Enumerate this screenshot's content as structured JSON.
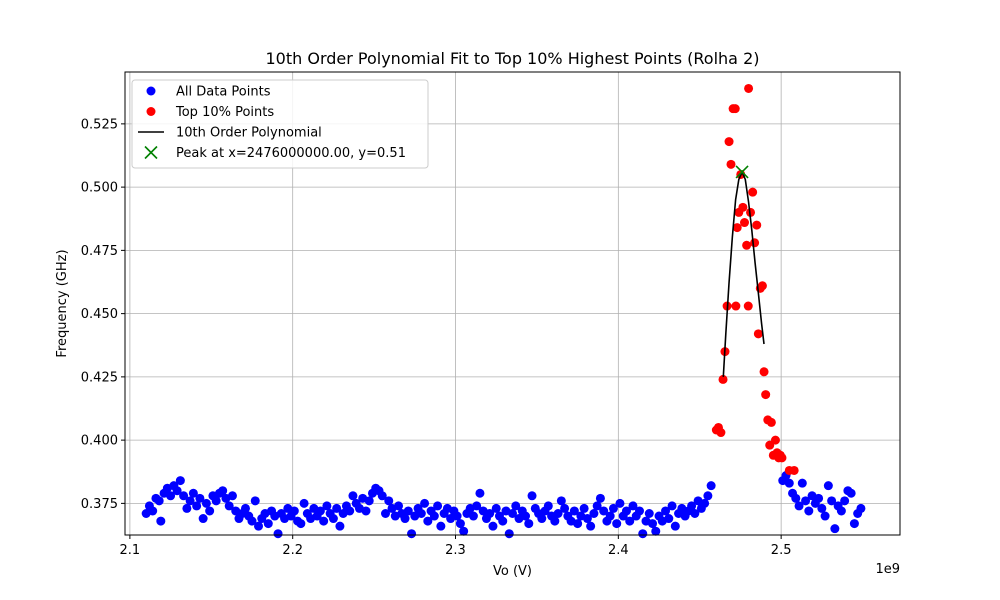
{
  "chart_data": {
    "type": "scatter",
    "title": "10th Order Polynomial Fit to Top 10% Highest Points (Rolha 2)",
    "xlabel": "Vo (V)",
    "ylabel": "Frequency (GHz)",
    "x_offset_label": "1e9",
    "xlim": [
      2.097,
      2.573
    ],
    "ylim": [
      0.3625,
      0.5455
    ],
    "x_ticks": [
      2.1,
      2.2,
      2.3,
      2.4,
      2.5
    ],
    "x_tick_labels": [
      "2.1",
      "2.2",
      "2.3",
      "2.4",
      "2.5"
    ],
    "y_ticks": [
      0.375,
      0.4,
      0.425,
      0.45,
      0.475,
      0.5,
      0.525
    ],
    "y_tick_labels": [
      "0.375",
      "0.400",
      "0.425",
      "0.450",
      "0.475",
      "0.500",
      "0.525"
    ],
    "grid": true,
    "legend_position": "upper-left",
    "colors": {
      "all_points": "#0000ff",
      "top_points": "#ff0000",
      "polynomial": "#000000",
      "peak": "#008000"
    },
    "legend": [
      {
        "label": "All Data Points",
        "marker": "circle",
        "color": "#0000ff"
      },
      {
        "label": "Top 10% Points",
        "marker": "circle",
        "color": "#ff0000"
      },
      {
        "label": "10th Order Polynomial",
        "marker": "line",
        "color": "#000000"
      },
      {
        "label": "Peak at x=2476000000.00, y=0.51",
        "marker": "x",
        "color": "#008000"
      }
    ],
    "series": [
      {
        "name": "All Data Points",
        "points": [
          [
            2.11,
            0.371
          ],
          [
            2.112,
            0.374
          ],
          [
            2.114,
            0.372
          ],
          [
            2.116,
            0.377
          ],
          [
            2.118,
            0.376
          ],
          [
            2.119,
            0.368
          ],
          [
            2.121,
            0.379
          ],
          [
            2.123,
            0.381
          ],
          [
            2.125,
            0.378
          ],
          [
            2.127,
            0.382
          ],
          [
            2.129,
            0.38
          ],
          [
            2.131,
            0.384
          ],
          [
            2.133,
            0.378
          ],
          [
            2.135,
            0.373
          ],
          [
            2.137,
            0.376
          ],
          [
            2.139,
            0.379
          ],
          [
            2.141,
            0.374
          ],
          [
            2.143,
            0.377
          ],
          [
            2.145,
            0.369
          ],
          [
            2.147,
            0.375
          ],
          [
            2.149,
            0.372
          ],
          [
            2.151,
            0.378
          ],
          [
            2.153,
            0.376
          ],
          [
            2.155,
            0.379
          ],
          [
            2.157,
            0.38
          ],
          [
            2.159,
            0.377
          ],
          [
            2.161,
            0.374
          ],
          [
            2.163,
            0.378
          ],
          [
            2.165,
            0.372
          ],
          [
            2.167,
            0.369
          ],
          [
            2.169,
            0.371
          ],
          [
            2.171,
            0.373
          ],
          [
            2.173,
            0.37
          ],
          [
            2.175,
            0.368
          ],
          [
            2.177,
            0.376
          ],
          [
            2.179,
            0.366
          ],
          [
            2.181,
            0.369
          ],
          [
            2.183,
            0.371
          ],
          [
            2.185,
            0.367
          ],
          [
            2.187,
            0.372
          ],
          [
            2.189,
            0.37
          ],
          [
            2.191,
            0.363
          ],
          [
            2.193,
            0.371
          ],
          [
            2.195,
            0.369
          ],
          [
            2.197,
            0.373
          ],
          [
            2.199,
            0.37
          ],
          [
            2.201,
            0.372
          ],
          [
            2.203,
            0.368
          ],
          [
            2.205,
            0.367
          ],
          [
            2.207,
            0.375
          ],
          [
            2.209,
            0.371
          ],
          [
            2.211,
            0.369
          ],
          [
            2.213,
            0.373
          ],
          [
            2.215,
            0.37
          ],
          [
            2.217,
            0.372
          ],
          [
            2.219,
            0.368
          ],
          [
            2.221,
            0.374
          ],
          [
            2.223,
            0.371
          ],
          [
            2.225,
            0.369
          ],
          [
            2.227,
            0.373
          ],
          [
            2.229,
            0.366
          ],
          [
            2.231,
            0.371
          ],
          [
            2.233,
            0.374
          ],
          [
            2.235,
            0.372
          ],
          [
            2.237,
            0.378
          ],
          [
            2.239,
            0.375
          ],
          [
            2.241,
            0.373
          ],
          [
            2.243,
            0.377
          ],
          [
            2.245,
            0.372
          ],
          [
            2.247,
            0.376
          ],
          [
            2.249,
            0.379
          ],
          [
            2.251,
            0.381
          ],
          [
            2.253,
            0.38
          ],
          [
            2.255,
            0.378
          ],
          [
            2.257,
            0.371
          ],
          [
            2.259,
            0.376
          ],
          [
            2.261,
            0.373
          ],
          [
            2.263,
            0.37
          ],
          [
            2.265,
            0.374
          ],
          [
            2.267,
            0.371
          ],
          [
            2.269,
            0.369
          ],
          [
            2.271,
            0.372
          ],
          [
            2.273,
            0.363
          ],
          [
            2.275,
            0.37
          ],
          [
            2.277,
            0.373
          ],
          [
            2.279,
            0.371
          ],
          [
            2.281,
            0.375
          ],
          [
            2.283,
            0.368
          ],
          [
            2.285,
            0.372
          ],
          [
            2.287,
            0.37
          ],
          [
            2.289,
            0.374
          ],
          [
            2.291,
            0.366
          ],
          [
            2.293,
            0.371
          ],
          [
            2.295,
            0.373
          ],
          [
            2.297,
            0.369
          ],
          [
            2.299,
            0.372
          ],
          [
            2.301,
            0.37
          ],
          [
            2.303,
            0.367
          ],
          [
            2.305,
            0.364
          ],
          [
            2.307,
            0.371
          ],
          [
            2.309,
            0.373
          ],
          [
            2.311,
            0.37
          ],
          [
            2.313,
            0.374
          ],
          [
            2.315,
            0.379
          ],
          [
            2.317,
            0.372
          ],
          [
            2.319,
            0.369
          ],
          [
            2.321,
            0.371
          ],
          [
            2.323,
            0.366
          ],
          [
            2.325,
            0.373
          ],
          [
            2.327,
            0.37
          ],
          [
            2.329,
            0.368
          ],
          [
            2.331,
            0.372
          ],
          [
            2.333,
            0.363
          ],
          [
            2.335,
            0.371
          ],
          [
            2.337,
            0.374
          ],
          [
            2.339,
            0.369
          ],
          [
            2.341,
            0.372
          ],
          [
            2.343,
            0.37
          ],
          [
            2.345,
            0.367
          ],
          [
            2.347,
            0.378
          ],
          [
            2.349,
            0.373
          ],
          [
            2.351,
            0.371
          ],
          [
            2.353,
            0.369
          ],
          [
            2.355,
            0.372
          ],
          [
            2.357,
            0.374
          ],
          [
            2.359,
            0.37
          ],
          [
            2.361,
            0.368
          ],
          [
            2.363,
            0.371
          ],
          [
            2.365,
            0.376
          ],
          [
            2.367,
            0.373
          ],
          [
            2.369,
            0.37
          ],
          [
            2.371,
            0.368
          ],
          [
            2.373,
            0.372
          ],
          [
            2.375,
            0.367
          ],
          [
            2.377,
            0.37
          ],
          [
            2.379,
            0.373
          ],
          [
            2.381,
            0.369
          ],
          [
            2.383,
            0.366
          ],
          [
            2.385,
            0.371
          ],
          [
            2.387,
            0.374
          ],
          [
            2.389,
            0.377
          ],
          [
            2.391,
            0.372
          ],
          [
            2.393,
            0.368
          ],
          [
            2.395,
            0.37
          ],
          [
            2.397,
            0.373
          ],
          [
            2.399,
            0.367
          ],
          [
            2.401,
            0.375
          ],
          [
            2.403,
            0.37
          ],
          [
            2.405,
            0.372
          ],
          [
            2.407,
            0.368
          ],
          [
            2.409,
            0.374
          ],
          [
            2.411,
            0.37
          ],
          [
            2.413,
            0.372
          ],
          [
            2.415,
            0.363
          ],
          [
            2.417,
            0.368
          ],
          [
            2.419,
            0.371
          ],
          [
            2.421,
            0.367
          ],
          [
            2.423,
            0.364
          ],
          [
            2.425,
            0.37
          ],
          [
            2.427,
            0.368
          ],
          [
            2.429,
            0.372
          ],
          [
            2.431,
            0.369
          ],
          [
            2.433,
            0.374
          ],
          [
            2.435,
            0.366
          ],
          [
            2.437,
            0.371
          ],
          [
            2.439,
            0.373
          ],
          [
            2.441,
            0.37
          ],
          [
            2.443,
            0.372
          ],
          [
            2.445,
            0.374
          ],
          [
            2.447,
            0.371
          ],
          [
            2.449,
            0.376
          ],
          [
            2.451,
            0.373
          ],
          [
            2.453,
            0.375
          ],
          [
            2.455,
            0.378
          ],
          [
            2.457,
            0.382
          ],
          [
            2.501,
            0.384
          ],
          [
            2.503,
            0.386
          ],
          [
            2.505,
            0.383
          ],
          [
            2.507,
            0.379
          ],
          [
            2.509,
            0.377
          ],
          [
            2.511,
            0.374
          ],
          [
            2.513,
            0.383
          ],
          [
            2.515,
            0.376
          ],
          [
            2.517,
            0.372
          ],
          [
            2.519,
            0.378
          ],
          [
            2.521,
            0.375
          ],
          [
            2.523,
            0.377
          ],
          [
            2.525,
            0.373
          ],
          [
            2.527,
            0.37
          ],
          [
            2.529,
            0.382
          ],
          [
            2.531,
            0.376
          ],
          [
            2.533,
            0.365
          ],
          [
            2.535,
            0.374
          ],
          [
            2.537,
            0.372
          ],
          [
            2.539,
            0.376
          ],
          [
            2.541,
            0.38
          ],
          [
            2.543,
            0.379
          ],
          [
            2.545,
            0.367
          ],
          [
            2.547,
            0.371
          ],
          [
            2.549,
            0.373
          ]
        ]
      },
      {
        "name": "Top 10% Points",
        "points": [
          [
            2.4602,
            0.404
          ],
          [
            2.4615,
            0.405
          ],
          [
            2.463,
            0.403
          ],
          [
            2.4643,
            0.424
          ],
          [
            2.4655,
            0.435
          ],
          [
            2.4668,
            0.453
          ],
          [
            2.468,
            0.518
          ],
          [
            2.4692,
            0.509
          ],
          [
            2.4705,
            0.531
          ],
          [
            2.4718,
            0.531
          ],
          [
            2.473,
            0.484
          ],
          [
            2.474,
            0.49
          ],
          [
            2.4752,
            0.505
          ],
          [
            2.4765,
            0.492
          ],
          [
            2.4775,
            0.486
          ],
          [
            2.4788,
            0.477
          ],
          [
            2.48,
            0.539
          ],
          [
            2.4812,
            0.49
          ],
          [
            2.4825,
            0.498
          ],
          [
            2.4837,
            0.478
          ],
          [
            2.485,
            0.485
          ],
          [
            2.486,
            0.442
          ],
          [
            2.4872,
            0.46
          ],
          [
            2.4885,
            0.461
          ],
          [
            2.4895,
            0.427
          ],
          [
            2.4905,
            0.418
          ],
          [
            2.4918,
            0.408
          ],
          [
            2.493,
            0.398
          ],
          [
            2.494,
            0.407
          ],
          [
            2.4952,
            0.394
          ],
          [
            2.4965,
            0.4
          ],
          [
            2.4975,
            0.395
          ],
          [
            2.4985,
            0.393
          ],
          [
            2.4995,
            0.394
          ],
          [
            2.5005,
            0.393
          ],
          [
            2.505,
            0.388
          ],
          [
            2.508,
            0.388
          ],
          [
            2.4722,
            0.453
          ],
          [
            2.4798,
            0.453
          ]
        ]
      },
      {
        "name": "10th Order Polynomial",
        "line": [
          [
            2.4645,
            0.425
          ],
          [
            2.466,
            0.442
          ],
          [
            2.468,
            0.462
          ],
          [
            2.47,
            0.48
          ],
          [
            2.472,
            0.495
          ],
          [
            2.474,
            0.503
          ],
          [
            2.476,
            0.506
          ],
          [
            2.478,
            0.503
          ],
          [
            2.48,
            0.494
          ],
          [
            2.482,
            0.483
          ],
          [
            2.484,
            0.47
          ],
          [
            2.486,
            0.458
          ],
          [
            2.488,
            0.446
          ],
          [
            2.4895,
            0.438
          ]
        ]
      },
      {
        "name": "Peak at x=2476000000.00, y=0.51",
        "points": [
          [
            2.476,
            0.506
          ]
        ]
      }
    ]
  }
}
